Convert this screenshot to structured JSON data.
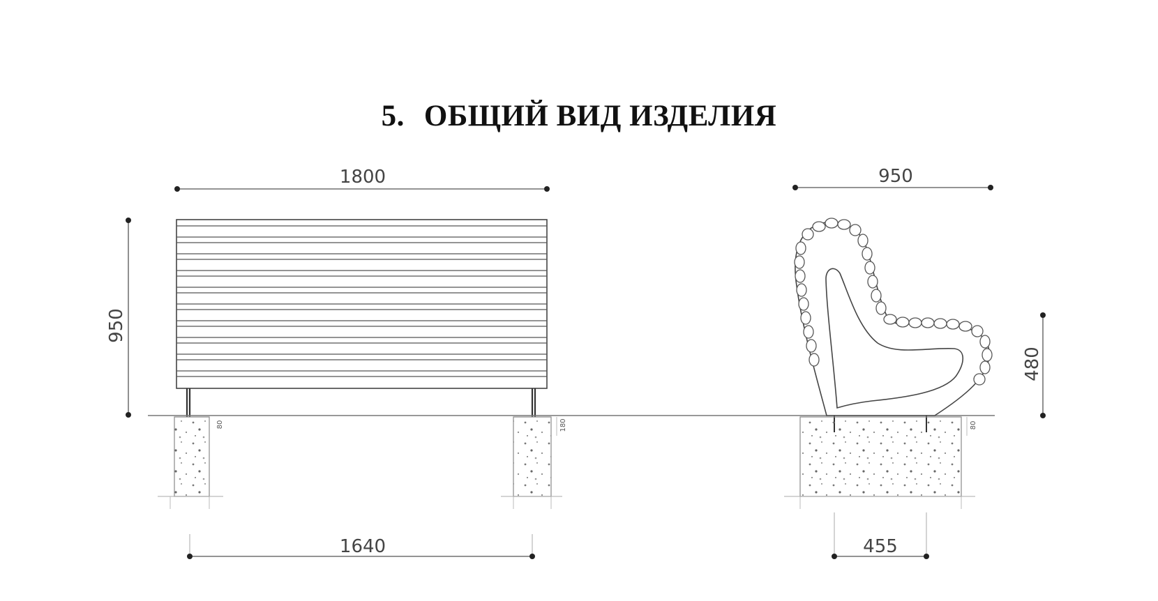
{
  "heading": {
    "number": "5.",
    "text": "ОБЩИЙ ВИД ИЗДЕЛИЯ"
  },
  "front_view": {
    "width_label": "1800",
    "height_label": "950",
    "leg_spacing_label": "1640",
    "left_footing_depth_label": "80",
    "right_footing_depth_label": "180"
  },
  "side_view": {
    "depth_label": "950",
    "seat_height_label": "480",
    "footing_base_label": "455",
    "footing_depth_label": "80"
  }
}
